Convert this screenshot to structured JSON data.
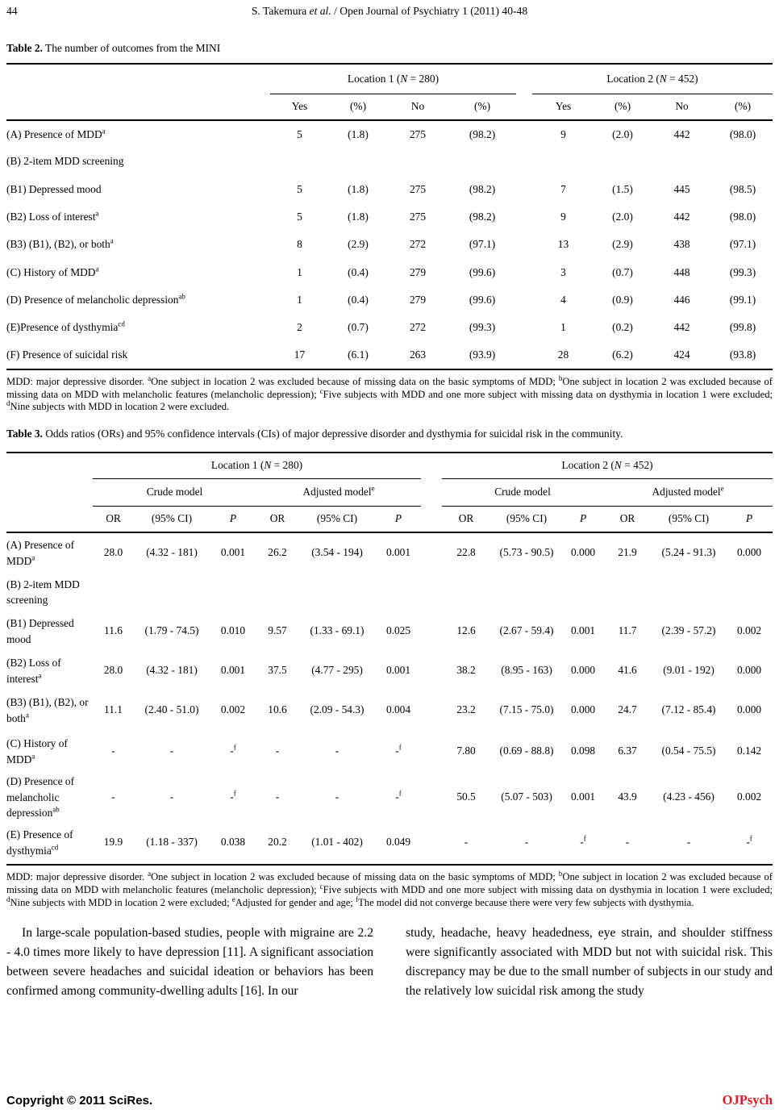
{
  "page": {
    "number": "44",
    "running_head": [
      {
        "t": "S. Takemura "
      },
      {
        "i": "et al."
      },
      {
        "t": " / Open Journal of Psychiatry 1 (2011) 40-48"
      }
    ]
  },
  "table2": {
    "caption_label": "Table 2.",
    "caption_text": " The number of outcomes from the MINI",
    "loc1": [
      {
        "t": "Location 1 ("
      },
      {
        "i": "N"
      },
      {
        "t": " = 280)"
      }
    ],
    "loc2": [
      {
        "t": "Location 2 ("
      },
      {
        "i": "N"
      },
      {
        "t": " = 452)"
      }
    ],
    "sub_headers": [
      "Yes",
      "(%)",
      "No",
      "(%)",
      "Yes",
      "(%)",
      "No",
      "(%)"
    ],
    "rows": [
      {
        "label": "(A) Presence of MDD",
        "sup": "a",
        "cells": [
          "5",
          "(1.8)",
          "275",
          "(98.2)",
          "9",
          "(2.0)",
          "442",
          "(98.0)"
        ]
      },
      {
        "label": "(B) 2-item MDD screening",
        "cells": [
          "",
          "",
          "",
          "",
          "",
          "",
          "",
          ""
        ]
      },
      {
        "label": "(B1) Depressed mood",
        "cells": [
          "5",
          "(1.8)",
          "275",
          "(98.2)",
          "7",
          "(1.5)",
          "445",
          "(98.5)"
        ]
      },
      {
        "label": "(B2) Loss of interest",
        "sup": "a",
        "cells": [
          "5",
          "(1.8)",
          "275",
          "(98.2)",
          "9",
          "(2.0)",
          "442",
          "(98.0)"
        ]
      },
      {
        "label": "(B3) (B1), (B2), or both",
        "sup": "a",
        "cells": [
          "8",
          "(2.9)",
          "272",
          "(97.1)",
          "13",
          "(2.9)",
          "438",
          "(97.1)"
        ]
      },
      {
        "label": "(C) History of MDD",
        "sup": "a",
        "cells": [
          "1",
          "(0.4)",
          "279",
          "(99.6)",
          "3",
          "(0.7)",
          "448",
          "(99.3)"
        ]
      },
      {
        "label": "(D) Presence of melancholic depression",
        "sup": "ab",
        "cells": [
          "1",
          "(0.4)",
          "279",
          "(99.6)",
          "4",
          "(0.9)",
          "446",
          "(99.1)"
        ]
      },
      {
        "label": "(E)Presence of dysthymia",
        "sup": "cd",
        "cells": [
          "2",
          "(0.7)",
          "272",
          "(99.3)",
          "1",
          "(0.2)",
          "442",
          "(99.8)"
        ]
      },
      {
        "label": "(F) Presence of suicidal risk",
        "cells": [
          "17",
          "(6.1)",
          "263",
          "(93.9)",
          "28",
          "(6.2)",
          "424",
          "(93.8)"
        ]
      }
    ],
    "footnote": [
      {
        "t": "MDD: major depressive disorder. "
      },
      {
        "s": "a"
      },
      {
        "t": "One subject in location 2 was excluded because of missing data on the basic symptoms of MDD; "
      },
      {
        "s": "b"
      },
      {
        "t": "One subject in location 2 was excluded because of missing data on MDD with melancholic features (melancholic depression); "
      },
      {
        "s": "c"
      },
      {
        "t": "Five subjects with MDD and one more subject with missing data on dysthymia in location 1 were excluded; "
      },
      {
        "s": "d"
      },
      {
        "t": "Nine subjects with MDD in location 2 were excluded."
      }
    ]
  },
  "table3": {
    "caption_label": "Table 3.",
    "caption_text": " Odds ratios (ORs) and 95% confidence intervals (CIs) of major depressive disorder and dysthymia for suicidal risk in the community.",
    "loc1": [
      {
        "t": "Location 1 ("
      },
      {
        "i": "N"
      },
      {
        "t": " = 280)"
      }
    ],
    "loc2": [
      {
        "t": "Location 2 ("
      },
      {
        "i": "N"
      },
      {
        "t": " = 452)"
      }
    ],
    "crude_label": "Crude model",
    "adjusted_label": "Adjusted model",
    "adjusted_sup": "e",
    "stat_headers": [
      "OR",
      "(95% CI)",
      "P",
      "OR",
      "(95% CI)",
      "P",
      "OR",
      "(95% CI)",
      "P",
      "OR",
      "(95% CI)",
      "P"
    ],
    "rows": [
      {
        "label": "(A) Presence of MDD",
        "sup": "a",
        "cells": [
          "28.0",
          "(4.32 - 181)",
          "0.001",
          "26.2",
          "(3.54 - 194)",
          "0.001",
          "22.8",
          "(5.73 - 90.5)",
          "0.000",
          "21.9",
          "(5.24 - 91.3)",
          "0.000"
        ]
      },
      {
        "label": "(B) 2-item MDD screening",
        "cells": [
          "",
          "",
          "",
          "",
          "",
          "",
          "",
          "",
          "",
          "",
          "",
          ""
        ]
      },
      {
        "label": "(B1) Depressed mood",
        "cells": [
          "11.6",
          "(1.79 - 74.5)",
          "0.010",
          "9.57",
          "(1.33 - 69.1)",
          "0.025",
          "12.6",
          "(2.67 - 59.4)",
          "0.001",
          "11.7",
          "(2.39 - 57.2)",
          "0.002"
        ]
      },
      {
        "label": "(B2) Loss of interest",
        "sup": "a",
        "cells": [
          "28.0",
          "(4.32 - 181)",
          "0.001",
          "37.5",
          "(4.77 - 295)",
          "0.001",
          "38.2",
          "(8.95 - 163)",
          "0.000",
          "41.6",
          "(9.01 - 192)",
          "0.000"
        ]
      },
      {
        "label": "(B3) (B1), (B2), or both",
        "sup": "a",
        "cells": [
          "11.1",
          "(2.40 - 51.0)",
          "0.002",
          "10.6",
          "(2.09 - 54.3)",
          "0.004",
          "23.2",
          "(7.15 - 75.0)",
          "0.000",
          "24.7",
          "(7.12 - 85.4)",
          "0.000"
        ]
      },
      {
        "label": "(C) History of MDD",
        "sup": "a",
        "cells": [
          "-",
          "-",
          "-",
          "-",
          "-",
          "-",
          "7.80",
          "(0.69 - 88.8)",
          "0.098",
          "6.37",
          "(0.54 - 75.5)",
          "0.142"
        ],
        "sups": [
          "",
          "",
          "f",
          "",
          "",
          "f",
          "",
          "",
          "",
          "",
          "",
          ""
        ]
      },
      {
        "label": "(D) Presence of melancholic depression",
        "sup": "ab",
        "cells": [
          "-",
          "-",
          "-",
          "-",
          "-",
          "-",
          "50.5",
          "(5.07 - 503)",
          "0.001",
          "43.9",
          "(4.23 - 456)",
          "0.002"
        ],
        "sups": [
          "",
          "",
          "f",
          "",
          "",
          "f",
          "",
          "",
          "",
          "",
          "",
          ""
        ]
      },
      {
        "label": "(E) Presence of dysthymia",
        "sup": "cd",
        "cells": [
          "19.9",
          "(1.18 - 337)",
          "0.038",
          "20.2",
          "(1.01 - 402)",
          "0.049",
          "-",
          "-",
          "-",
          "-",
          "-",
          "-"
        ],
        "sups": [
          "",
          "",
          "",
          "",
          "",
          "",
          "",
          "",
          "f",
          "",
          "",
          "f"
        ]
      }
    ],
    "footnote": [
      {
        "t": "MDD: major depressive disorder. "
      },
      {
        "s": "a"
      },
      {
        "t": "One subject in location 2 was excluded because of missing data on the basic symptoms of MDD; "
      },
      {
        "s": "b"
      },
      {
        "t": "One subject in location 2 was excluded because of missing data on MDD with melancholic features (melancholic depression); "
      },
      {
        "s": "c"
      },
      {
        "t": "Five subjects with MDD and one more subject with missing data on dysthymia in location 1 were excluded; "
      },
      {
        "s": "d"
      },
      {
        "t": "Nine subjects with MDD in location 2 were excluded; "
      },
      {
        "s": "e"
      },
      {
        "t": "Adjusted for gender and age; "
      },
      {
        "s": "f"
      },
      {
        "t": "The model did not converge because there were very few subjects with dysthymia."
      }
    ]
  },
  "body": {
    "left_column": "In large-scale population-based studies, people with migraine are 2.2 - 4.0 times more likely to have depression [11]. A significant association between severe headaches and suicidal ideation or behaviors has been confirmed among community-dwelling adults [16]. In our",
    "right_column": "study, headache, heavy headedness, eye strain, and shoulder stiffness were significantly associated with MDD but not with suicidal risk. This discrepancy may be due to the small number of subjects in our study and the relatively low suicidal risk among the study"
  },
  "footer": {
    "copyright": "Copyright © 2011 SciRes.",
    "journal": "OJPsych",
    "journal_color": "#e01b26"
  }
}
